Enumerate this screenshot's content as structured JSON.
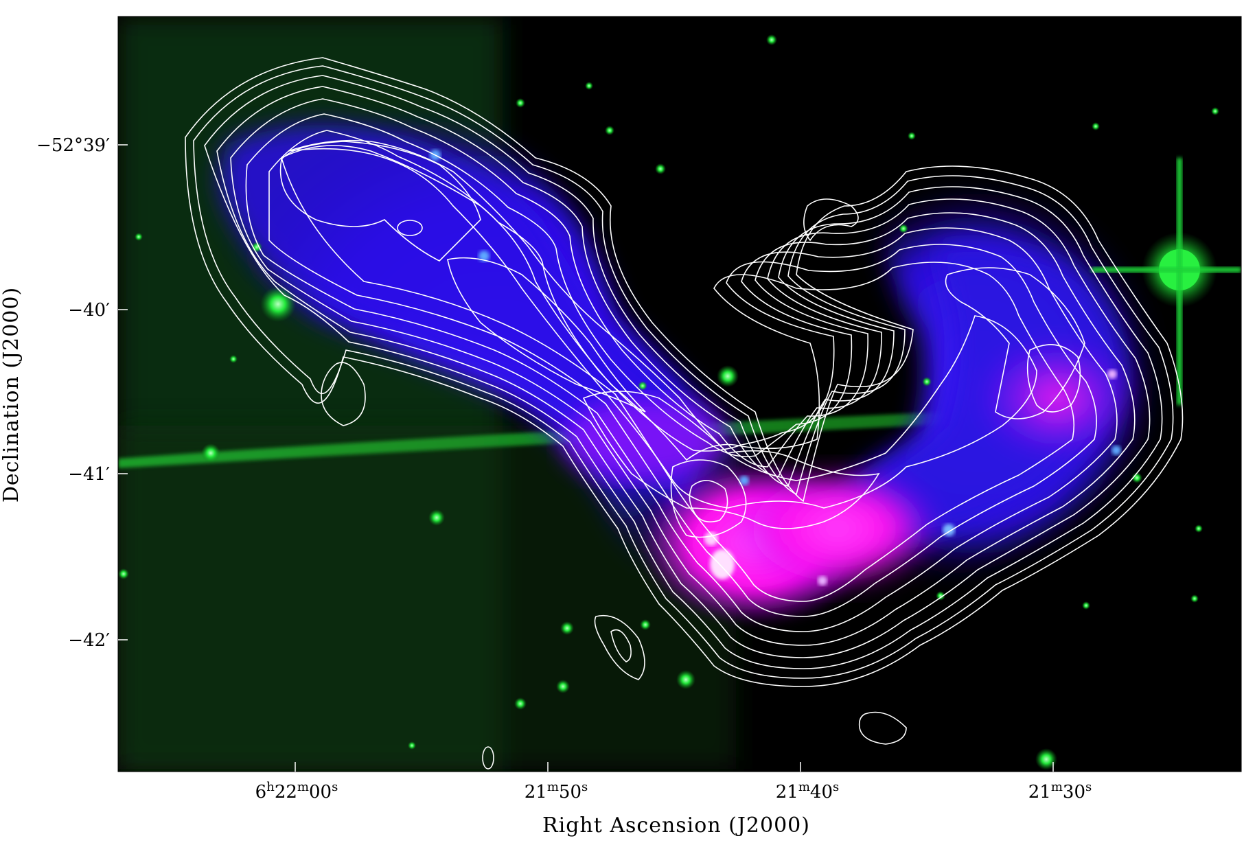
{
  "figure": {
    "xlabel": "Right Ascension (J2000)",
    "ylabel": "Declination (J2000)",
    "xticks": [
      {
        "h": "6",
        "hsup": "h",
        "m": "22",
        "msup": "m",
        "s": "00",
        "ssup": "s"
      },
      {
        "m": "21",
        "msup": "m",
        "s": "50",
        "ssup": "s"
      },
      {
        "m": "21",
        "msup": "m",
        "s": "40",
        "ssup": "s"
      },
      {
        "m": "21",
        "msup": "m",
        "s": "30",
        "ssup": "s"
      }
    ],
    "yticks": [
      "−52°39′",
      "−40′",
      "−41′",
      "−42′"
    ],
    "colors": {
      "background": "#000000",
      "optical_stars": "#22e83a",
      "xray_lobe": "#3a10ff",
      "core": "#ff16f0",
      "contours": "#ffffff"
    }
  }
}
